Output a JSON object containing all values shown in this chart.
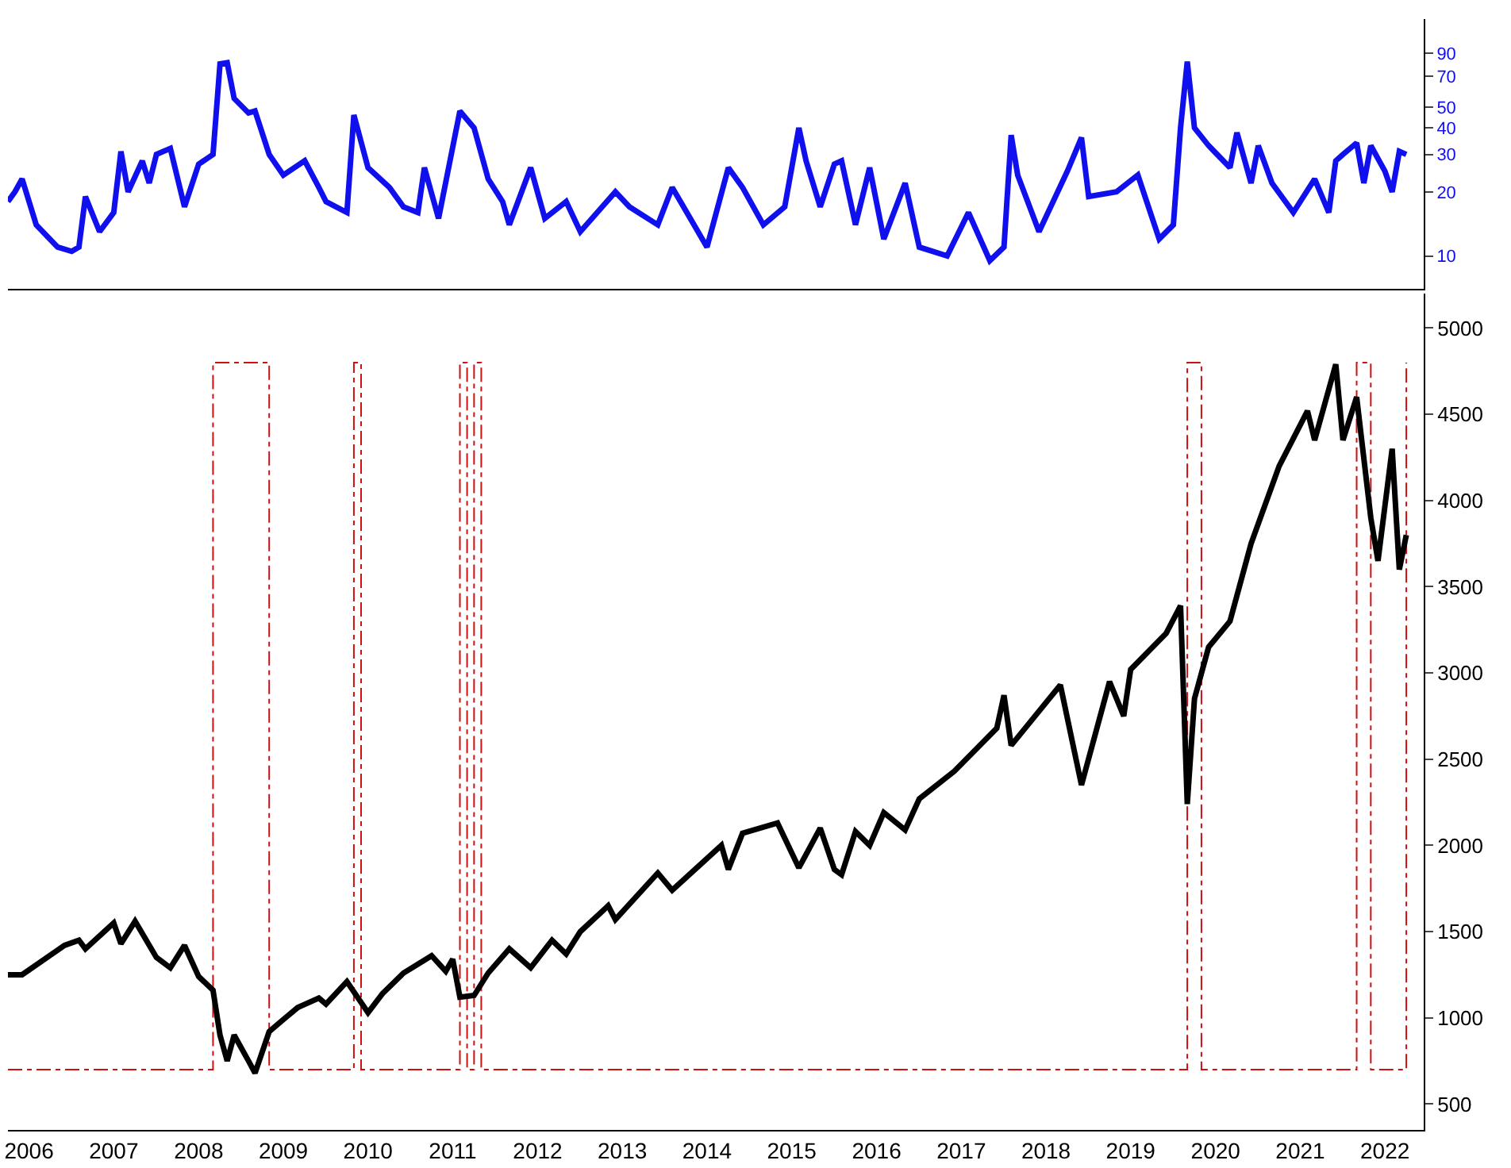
{
  "chart_data": [
    {
      "type": "line",
      "log": true,
      "tick_labels": "y",
      "xlim": [
        "2006-04-01",
        "2022-12-15"
      ],
      "ylim": [
        7,
        130
      ],
      "yticks": [
        10,
        20,
        30,
        40,
        50,
        70,
        90
      ],
      "series": [
        {
          "color": "#1010ee",
          "x": [
            "2006-04",
            "2006-05",
            "2006-06",
            "2006-08",
            "2006-11",
            "2007-01",
            "2007-02",
            "2007-03",
            "2007-05",
            "2007-07",
            "2007-08",
            "2007-09",
            "2007-11",
            "2007-12",
            "2008-01",
            "2008-03",
            "2008-05",
            "2008-07",
            "2008-09",
            "2008-10",
            "2008-11",
            "2008-12",
            "2009-02",
            "2009-03",
            "2009-05",
            "2009-07",
            "2009-10",
            "2009-12",
            "2010-01",
            "2010-04",
            "2010-05",
            "2010-07",
            "2010-10",
            "2010-12",
            "2011-02",
            "2011-03",
            "2011-05",
            "2011-08",
            "2011-10",
            "2011-12",
            "2012-02",
            "2012-03",
            "2012-06",
            "2012-08",
            "2012-11",
            "2013-01",
            "2013-06",
            "2013-08",
            "2013-12",
            "2014-02",
            "2014-07",
            "2014-10",
            "2014-12",
            "2015-03",
            "2015-06",
            "2015-08",
            "2015-09",
            "2015-11",
            "2016-01",
            "2016-02",
            "2016-04",
            "2016-06",
            "2016-08",
            "2016-11",
            "2017-01",
            "2017-05",
            "2017-08",
            "2017-11",
            "2018-01",
            "2018-02",
            "2018-03",
            "2018-06",
            "2018-10",
            "2018-12",
            "2019-01",
            "2019-05",
            "2019-08",
            "2019-11",
            "2020-01",
            "2020-02",
            "2020-03",
            "2020-04",
            "2020-06",
            "2020-09",
            "2020-10",
            "2020-12",
            "2021-01",
            "2021-03",
            "2021-06",
            "2021-09",
            "2021-11",
            "2021-12",
            "2022-01",
            "2022-03",
            "2022-04",
            "2022-05",
            "2022-07",
            "2022-08",
            "2022-09",
            "2022-10"
          ],
          "values": [
            18,
            20,
            23,
            14,
            11,
            10.5,
            11,
            19,
            13,
            16,
            31,
            20,
            28,
            22,
            30,
            32,
            17,
            27,
            30,
            80,
            81,
            55,
            47,
            48,
            30,
            24,
            28,
            21,
            18,
            16,
            46,
            26,
            21,
            17,
            16,
            26,
            15,
            48,
            40,
            23,
            18,
            14,
            26,
            15,
            18,
            13,
            20,
            17,
            14,
            21,
            11,
            26,
            21,
            14,
            17,
            40,
            28,
            17,
            27,
            28,
            14,
            26,
            12,
            22,
            11,
            10,
            16,
            9.5,
            11,
            37,
            24,
            13,
            25,
            36,
            19,
            20,
            24,
            12,
            14,
            40,
            82,
            40,
            33,
            26,
            38,
            22,
            33,
            22,
            16,
            23,
            16,
            28,
            30,
            34,
            22,
            33,
            25,
            20,
            31,
            30
          ]
        }
      ]
    },
    {
      "type": "line",
      "tick_labels": "xy",
      "xlim": [
        "2006-04-01",
        "2022-12-15"
      ],
      "ylim": [
        350,
        5200
      ],
      "yticks": [
        500,
        1000,
        1500,
        2000,
        2500,
        3000,
        3500,
        4000,
        4500,
        5000
      ],
      "xticks": [
        {
          "value": "2006-07-01",
          "label": "2006"
        },
        {
          "value": "2007-07-01",
          "label": "2007"
        },
        {
          "value": "2008-07-01",
          "label": "2008"
        },
        {
          "value": "2009-07-01",
          "label": "2009"
        },
        {
          "value": "2010-07-01",
          "label": "2010"
        },
        {
          "value": "2011-07-01",
          "label": "2011"
        },
        {
          "value": "2012-07-01",
          "label": "2012"
        },
        {
          "value": "2013-07-01",
          "label": "2013"
        },
        {
          "value": "2014-07-01",
          "label": "2014"
        },
        {
          "value": "2015-07-01",
          "label": "2015"
        },
        {
          "value": "2016-07-01",
          "label": "2016"
        },
        {
          "value": "2017-07-01",
          "label": "2017"
        },
        {
          "value": "2018-07-01",
          "label": "2018"
        },
        {
          "value": "2019-07-01",
          "label": "2019"
        },
        {
          "value": "2020-07-01",
          "label": "2020"
        },
        {
          "value": "2021-07-01",
          "label": "2021"
        },
        {
          "value": "2022-07-01",
          "label": "2022"
        }
      ],
      "series": [
        {
          "type": "step",
          "line_style": "dashed",
          "color": "#cc1111",
          "x": [
            "2006-04",
            "2008-09",
            "2009-05",
            "2010-05",
            "2010-06",
            "2011-08",
            "2011-09",
            "2011-10",
            "2011-11",
            "2020-03",
            "2020-05",
            "2022-03",
            "2022-05",
            "2022-10"
          ],
          "values": [
            700,
            4800,
            700,
            4800,
            700,
            4800,
            700,
            4800,
            700,
            4800,
            700,
            4800,
            700,
            4800
          ]
        },
        {
          "color": "#000000",
          "x": [
            "2006-04",
            "2006-06",
            "2006-12",
            "2007-02",
            "2007-03",
            "2007-07",
            "2007-08",
            "2007-10",
            "2008-01",
            "2008-03",
            "2008-05",
            "2008-07",
            "2008-09",
            "2008-10",
            "2008-11",
            "2008-12",
            "2009-02",
            "2009-03",
            "2009-05",
            "2009-07",
            "2009-09",
            "2009-12",
            "2010-01",
            "2010-04",
            "2010-07",
            "2010-09",
            "2010-12",
            "2011-04",
            "2011-06",
            "2011-07",
            "2011-08",
            "2011-10",
            "2011-12",
            "2012-03",
            "2012-06",
            "2012-09",
            "2012-11",
            "2013-01",
            "2013-05",
            "2013-06",
            "2013-12",
            "2014-02",
            "2014-09",
            "2014-10",
            "2014-12",
            "2015-05",
            "2015-08",
            "2015-11",
            "2016-01",
            "2016-02",
            "2016-04",
            "2016-06",
            "2016-08",
            "2016-11",
            "2017-01",
            "2017-06",
            "2017-12",
            "2018-01",
            "2018-02",
            "2018-09",
            "2018-12",
            "2019-04",
            "2019-06",
            "2019-07",
            "2019-12",
            "2020-02",
            "2020-03",
            "2020-04",
            "2020-06",
            "2020-09",
            "2020-12",
            "2021-04",
            "2021-08",
            "2021-09",
            "2021-12",
            "2022-01",
            "2022-03",
            "2022-05",
            "2022-06",
            "2022-08",
            "2022-09",
            "2022-10"
          ],
          "values": [
            1250,
            1250,
            1420,
            1450,
            1400,
            1550,
            1430,
            1560,
            1350,
            1290,
            1420,
            1240,
            1160,
            900,
            750,
            900,
            750,
            680,
            920,
            990,
            1060,
            1115,
            1080,
            1210,
            1030,
            1140,
            1260,
            1360,
            1270,
            1340,
            1120,
            1130,
            1260,
            1400,
            1290,
            1450,
            1370,
            1500,
            1650,
            1570,
            1840,
            1740,
            2000,
            1860,
            2070,
            2130,
            1870,
            2100,
            1860,
            1830,
            2080,
            2000,
            2190,
            2090,
            2270,
            2430,
            2680,
            2870,
            2580,
            2930,
            2350,
            2950,
            2750,
            3020,
            3230,
            3390,
            2240,
            2850,
            3150,
            3300,
            3750,
            4200,
            4520,
            4350,
            4790,
            4350,
            4600,
            3900,
            3650,
            4300,
            3600,
            3800
          ]
        }
      ]
    }
  ]
}
